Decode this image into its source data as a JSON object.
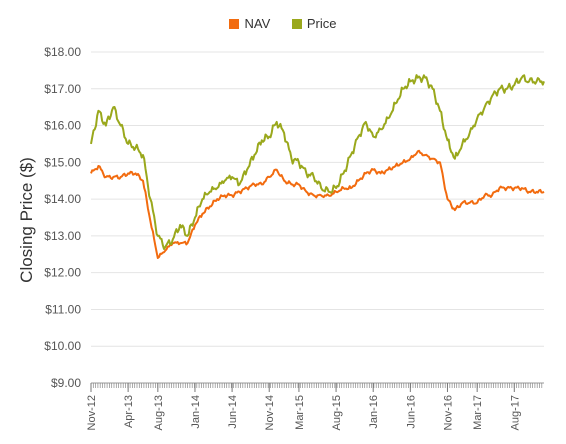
{
  "chart_data": {
    "type": "line",
    "title": "",
    "xlabel": "",
    "ylabel": "Closing Price ($)",
    "ylim": [
      9,
      18
    ],
    "y_ticks": [
      "$9.00",
      "$10.00",
      "$11.00",
      "$12.00",
      "$13.00",
      "$14.00",
      "$15.00",
      "$16.00",
      "$17.00",
      "$18.00"
    ],
    "x_tick_labels": [
      "Nov-12",
      "Apr-13",
      "Aug-13",
      "Jan-14",
      "Jun-14",
      "Nov-14",
      "Mar-15",
      "Aug-15",
      "Jan-16",
      "Jun-16",
      "Nov-16",
      "Mar-17",
      "Aug-17"
    ],
    "x_range": [
      "2012-11",
      "2017-12"
    ],
    "grid": true,
    "legend_position": "top-center",
    "series": [
      {
        "name": "NAV",
        "color": "#f26b0f",
        "x": [
          "2012-11",
          "2012-12",
          "2013-01",
          "2013-02",
          "2013-03",
          "2013-04",
          "2013-05",
          "2013-06",
          "2013-07",
          "2013-08",
          "2013-09",
          "2013-10",
          "2013-11",
          "2013-12",
          "2014-01",
          "2014-02",
          "2014-03",
          "2014-04",
          "2014-05",
          "2014-06",
          "2014-07",
          "2014-08",
          "2014-09",
          "2014-10",
          "2014-11",
          "2014-12",
          "2015-01",
          "2015-02",
          "2015-03",
          "2015-04",
          "2015-05",
          "2015-06",
          "2015-07",
          "2015-08",
          "2015-09",
          "2015-10",
          "2015-11",
          "2015-12",
          "2016-01",
          "2016-02",
          "2016-03",
          "2016-04",
          "2016-05",
          "2016-06",
          "2016-07",
          "2016-08",
          "2016-09",
          "2016-10",
          "2016-11",
          "2016-12",
          "2017-01",
          "2017-02",
          "2017-03",
          "2017-04",
          "2017-05",
          "2017-06",
          "2017-07",
          "2017-08",
          "2017-09",
          "2017-10",
          "2017-11",
          "2017-12"
        ],
        "values": [
          14.7,
          14.9,
          14.6,
          14.6,
          14.6,
          14.7,
          14.7,
          14.5,
          13.4,
          12.4,
          12.6,
          12.8,
          12.8,
          12.8,
          13.3,
          13.6,
          13.8,
          14.0,
          14.1,
          14.1,
          14.2,
          14.3,
          14.4,
          14.4,
          14.6,
          14.8,
          14.5,
          14.4,
          14.4,
          14.2,
          14.1,
          14.1,
          14.1,
          14.2,
          14.3,
          14.3,
          14.5,
          14.7,
          14.8,
          14.7,
          14.8,
          14.9,
          15.0,
          15.1,
          15.3,
          15.2,
          15.1,
          15.0,
          14.0,
          13.7,
          13.9,
          13.9,
          13.9,
          14.1,
          14.1,
          14.3,
          14.3,
          14.3,
          14.3,
          14.2,
          14.2,
          14.2
        ]
      },
      {
        "name": "Price",
        "color": "#9aa81c",
        "x": [
          "2012-11",
          "2012-12",
          "2013-01",
          "2013-02",
          "2013-03",
          "2013-04",
          "2013-05",
          "2013-06",
          "2013-07",
          "2013-08",
          "2013-09",
          "2013-10",
          "2013-11",
          "2013-12",
          "2014-01",
          "2014-02",
          "2014-03",
          "2014-04",
          "2014-05",
          "2014-06",
          "2014-07",
          "2014-08",
          "2014-09",
          "2014-10",
          "2014-11",
          "2014-12",
          "2015-01",
          "2015-02",
          "2015-03",
          "2015-04",
          "2015-05",
          "2015-06",
          "2015-07",
          "2015-08",
          "2015-09",
          "2015-10",
          "2015-11",
          "2015-12",
          "2016-01",
          "2016-02",
          "2016-03",
          "2016-04",
          "2016-05",
          "2016-06",
          "2016-07",
          "2016-08",
          "2016-09",
          "2016-10",
          "2016-11",
          "2016-12",
          "2017-01",
          "2017-02",
          "2017-03",
          "2017-04",
          "2017-05",
          "2017-06",
          "2017-07",
          "2017-08",
          "2017-09",
          "2017-10",
          "2017-11",
          "2017-12"
        ],
        "values": [
          15.5,
          16.4,
          16.0,
          16.5,
          16.0,
          15.5,
          15.4,
          15.2,
          14.0,
          13.0,
          12.7,
          12.9,
          13.3,
          13.0,
          13.5,
          14.0,
          14.2,
          14.3,
          14.5,
          14.6,
          14.4,
          14.8,
          15.2,
          15.6,
          15.7,
          16.1,
          15.8,
          15.1,
          15.0,
          14.7,
          14.6,
          14.3,
          14.2,
          14.3,
          14.7,
          15.2,
          15.7,
          16.1,
          15.7,
          15.9,
          16.2,
          16.6,
          17.0,
          17.2,
          17.3,
          17.3,
          17.0,
          16.4,
          15.6,
          15.1,
          15.5,
          15.8,
          16.2,
          16.5,
          16.8,
          17.0,
          17.0,
          17.1,
          17.3,
          17.2,
          17.2,
          17.2
        ]
      }
    ]
  }
}
